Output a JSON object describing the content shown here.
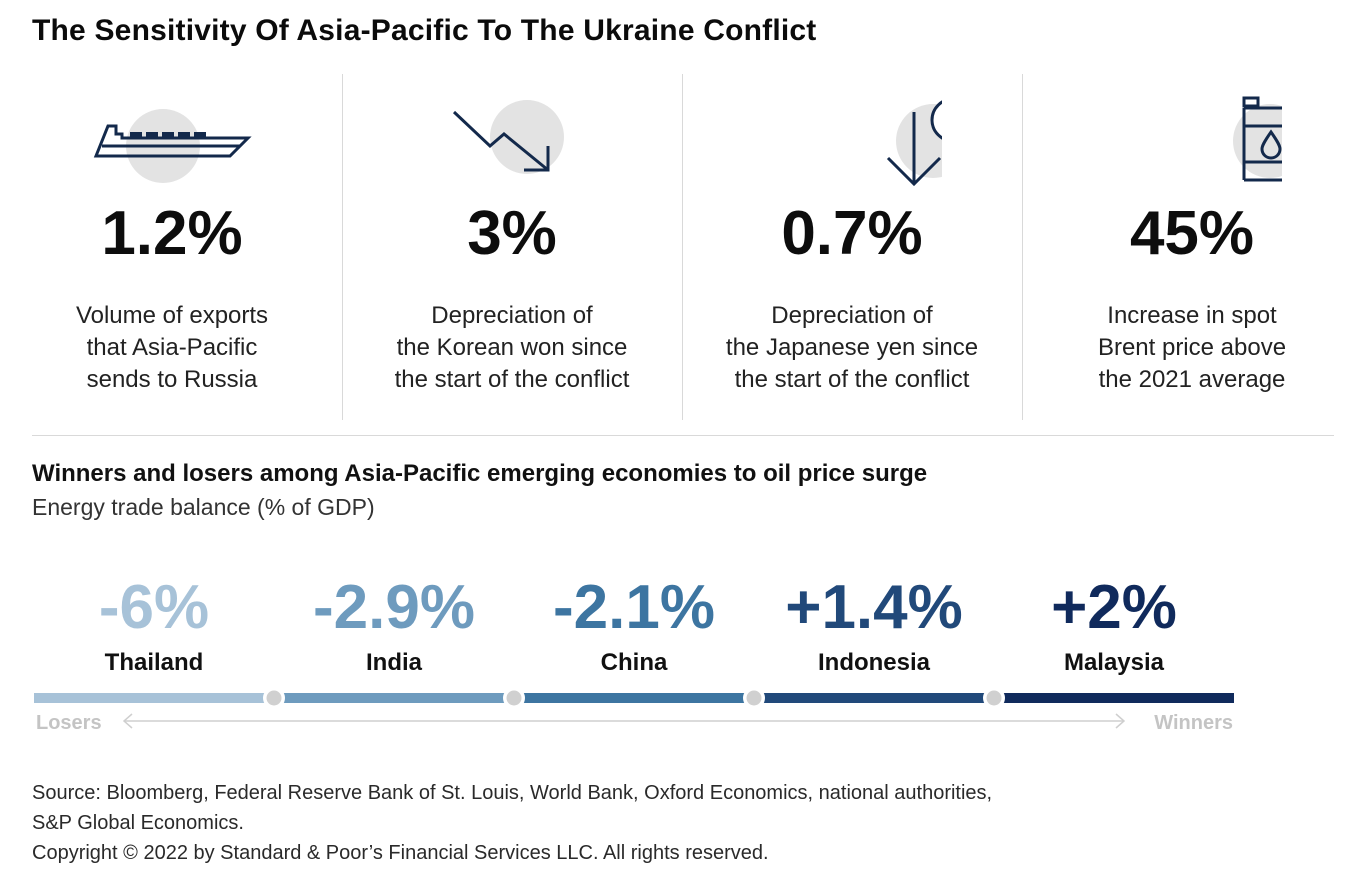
{
  "title": "The Sensitivity Of Asia-Pacific To The Ukraine Conflict",
  "stats": [
    {
      "icon": "cargo-ship-icon",
      "value": "1.2%",
      "lines": [
        "Volume of exports",
        "that Asia-Pacific",
        "sends to Russia"
      ]
    },
    {
      "icon": "down-trend-arrow-icon",
      "value": "3%",
      "lines": [
        "Depreciation of",
        "the Korean won since",
        "the start of the conflict"
      ]
    },
    {
      "icon": "yen-down-arrow-icon",
      "value": "0.7%",
      "lines": [
        "Depreciation of",
        "the Japanese yen since",
        "the start of the conflict"
      ]
    },
    {
      "icon": "oil-barrel-icon",
      "value": "45%",
      "lines": [
        "Increase in spot",
        "Brent price above",
        "the 2021 average"
      ]
    }
  ],
  "colors": {
    "icon_stroke": "#13294b",
    "icon_circle": "#e3e3e3",
    "track": "#cfcfcf"
  },
  "chart_data": {
    "type": "table",
    "title": "Winners and losers among Asia-Pacific emerging economies to oil price surge",
    "subtitle": "Energy trade balance (% of GDP)",
    "categories": [
      "Thailand",
      "India",
      "China",
      "Indonesia",
      "Malaysia"
    ],
    "labels": [
      "-6%",
      "-2.9%",
      "-2.1%",
      "+1.4%",
      "+2%"
    ],
    "values": [
      -6,
      -2.9,
      -2.1,
      1.4,
      2
    ],
    "colors": [
      "#a7c2d8",
      "#6e9bbe",
      "#3d75a1",
      "#21497a",
      "#102a5c"
    ],
    "axis_left": "Losers",
    "axis_right": "Winners"
  },
  "source_lines": [
    "Source: Bloomberg, Federal Reserve Bank of St. Louis, World Bank, Oxford Economics, national authorities,",
    "S&P Global Economics.",
    "Copyright © 2022 by Standard & Poor’s Financial Services LLC. All rights reserved."
  ]
}
